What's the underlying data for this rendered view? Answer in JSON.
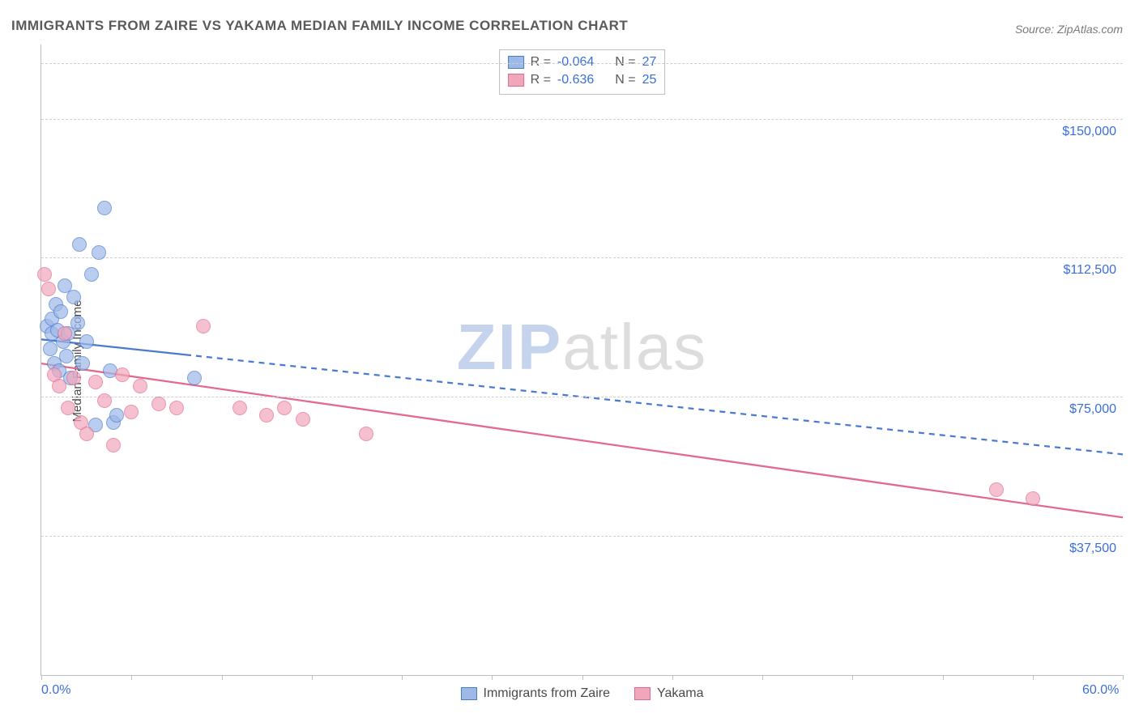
{
  "title": "IMMIGRANTS FROM ZAIRE VS YAKAMA MEDIAN FAMILY INCOME CORRELATION CHART",
  "source_label": "Source: ZipAtlas.com",
  "ylabel": "Median Family Income",
  "watermark": {
    "bold": "ZIP",
    "rest": "atlas"
  },
  "chart": {
    "type": "scatter",
    "background_color": "#ffffff",
    "grid_color": "#cfcfcf",
    "axis_color": "#bdbdbd",
    "tick_label_color": "#3a6fd8",
    "xlim": [
      0,
      60
    ],
    "ylim": [
      0,
      170000
    ],
    "x_tick_step": 5,
    "y_gridlines": [
      37500,
      75000,
      112500,
      150000,
      165000
    ],
    "x_tick_labels": {
      "0": "0.0%",
      "60": "60.0%"
    },
    "y_tick_labels": {
      "37500": "$37,500",
      "75000": "$75,000",
      "112500": "$112,500",
      "150000": "$150,000"
    },
    "marker_radius": 9,
    "marker_fill_opacity": 0.35,
    "marker_stroke_width": 1.3,
    "series": [
      {
        "id": "zaire",
        "label": "Immigrants from Zaire",
        "color_stroke": "#4a7bd0",
        "color_fill": "#9db9e8",
        "r": -0.064,
        "n": 27,
        "trend": {
          "x1": 0,
          "y1": 90500,
          "x2": 60,
          "y2": 59500,
          "solid_until_x": 8,
          "stroke_width": 2.3
        },
        "points": [
          [
            0.3,
            94000
          ],
          [
            0.5,
            88000
          ],
          [
            0.6,
            96000
          ],
          [
            0.6,
            92000
          ],
          [
            0.7,
            84000
          ],
          [
            0.8,
            100000
          ],
          [
            0.9,
            93000
          ],
          [
            1.0,
            82000
          ],
          [
            1.1,
            98000
          ],
          [
            1.2,
            90000
          ],
          [
            1.3,
            105000
          ],
          [
            1.4,
            86000
          ],
          [
            1.5,
            92000
          ],
          [
            1.6,
            80000
          ],
          [
            1.8,
            102000
          ],
          [
            2.0,
            95000
          ],
          [
            2.1,
            116000
          ],
          [
            2.3,
            84000
          ],
          [
            2.5,
            90000
          ],
          [
            2.8,
            108000
          ],
          [
            3.0,
            67500
          ],
          [
            3.2,
            114000
          ],
          [
            3.5,
            126000
          ],
          [
            3.8,
            82000
          ],
          [
            4.0,
            68000
          ],
          [
            4.2,
            70000
          ],
          [
            8.5,
            80000
          ]
        ]
      },
      {
        "id": "yakama",
        "label": "Yakama",
        "color_stroke": "#e26a8d",
        "color_fill": "#f2a6bb",
        "r": -0.636,
        "n": 25,
        "trend": {
          "x1": 0,
          "y1": 84000,
          "x2": 60,
          "y2": 42500,
          "solid_until_x": 60,
          "stroke_width": 2.3
        },
        "points": [
          [
            0.2,
            108000
          ],
          [
            0.4,
            104000
          ],
          [
            0.7,
            81000
          ],
          [
            1.0,
            78000
          ],
          [
            1.3,
            92000
          ],
          [
            1.5,
            72000
          ],
          [
            1.8,
            80000
          ],
          [
            2.2,
            68000
          ],
          [
            2.5,
            65000
          ],
          [
            3.0,
            79000
          ],
          [
            3.5,
            74000
          ],
          [
            4.0,
            62000
          ],
          [
            4.5,
            81000
          ],
          [
            5.0,
            71000
          ],
          [
            5.5,
            78000
          ],
          [
            6.5,
            73000
          ],
          [
            7.5,
            72000
          ],
          [
            9.0,
            94000
          ],
          [
            11.0,
            72000
          ],
          [
            12.5,
            70000
          ],
          [
            13.5,
            72000
          ],
          [
            14.5,
            69000
          ],
          [
            18.0,
            65000
          ],
          [
            53.0,
            50000
          ],
          [
            55.0,
            47500
          ]
        ]
      }
    ],
    "legend_top": {
      "r_prefix": "R =",
      "n_prefix": "N ="
    }
  }
}
